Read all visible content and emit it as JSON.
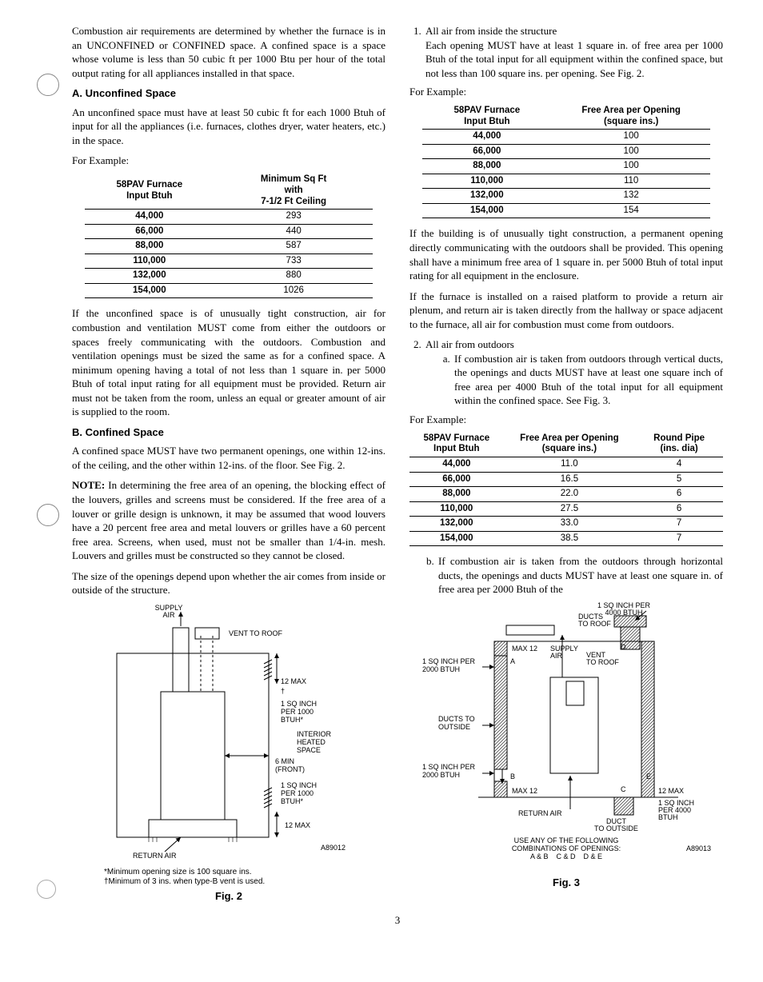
{
  "left": {
    "intro": "Combustion air requirements are determined by whether the furnace is in an UNCONFINED or CONFINED space. A confined space is a space whose volume is less than 50 cubic ft per 1000 Btu per hour of the total output rating for all appliances installed in that space.",
    "sec_a_head": "A. Unconfined Space",
    "sec_a_p1": "An unconfined space must have at least 50 cubic ft for each 1000 Btuh of input for all the appliances (i.e. furnaces, clothes dryer, water heaters, etc.) in the space.",
    "for_example": "For Example:",
    "table1": {
      "h1": "58PAV Furnace\nInput Btuh",
      "h2": "Minimum Sq Ft\nwith\n7-1/2 Ft Ceiling",
      "rows": [
        [
          "44,000",
          "293"
        ],
        [
          "66,000",
          "440"
        ],
        [
          "88,000",
          "587"
        ],
        [
          "110,000",
          "733"
        ],
        [
          "132,000",
          "880"
        ],
        [
          "154,000",
          "1026"
        ]
      ]
    },
    "sec_a_p2": "If the unconfined space is of unusually tight construction, air for combustion and ventilation MUST come from either the outdoors or spaces freely communicating with the outdoors. Combustion and ventilation openings must be sized the same as for a confined space. A minimum opening having a total of not less than 1 square in. per 5000 Btuh of total input rating for all equipment must be provided. Return air must not be taken from the room, unless an equal or greater amount of air is supplied to the room.",
    "sec_b_head": "B. Confined Space",
    "sec_b_p1": "A confined space MUST have two permanent openings, one within 12-ins. of the ceiling, and the other within 12-ins. of the floor. See Fig. 2.",
    "sec_b_p2_note": "NOTE:",
    "sec_b_p2": " In determining the free area of an opening, the blocking effect of the louvers, grilles and screens must be considered. If the free area of a louver or grille design is unknown, it may be assumed that wood louvers have a 20 percent free area and metal louvers or grilles have a 60 percent free area. Screens, when used, must not be smaller than 1/4-in. mesh. Louvers and grilles must be constructed so they cannot be closed.",
    "sec_b_p3": "The size of the openings depend upon whether the air comes from inside or outside of the structure.",
    "fig2": {
      "labels": {
        "supply_air": "SUPPLY\nAIR",
        "vent_roof": "VENT TO ROOF",
        "max12_top": "12 MAX",
        "sq_top": "1 SQ INCH\nPER 1000\nBTUH*",
        "interior": "INTERIOR\nHEATED\nSPACE",
        "front": "6 MIN\n(FRONT)",
        "sq_bot": "1 SQ INCH\nPER 1000\nBTUH*",
        "max12_bot": "12 MAX",
        "return": "RETURN AIR",
        "code": "A89012"
      },
      "footnote1": "*Minimum opening size is 100 square ins.",
      "footnote2": "†Minimum of 3 ins. when type-B vent is used.",
      "caption": "Fig. 2"
    }
  },
  "right": {
    "list1_li1_lead": "All air from inside the structure",
    "list1_li1_body": "Each opening MUST have at least 1 square in. of free area per 1000 Btuh of the total input for all equipment within the confined space, but not less than 100 square ins. per opening. See Fig. 2.",
    "for_example": "For Example:",
    "table2": {
      "h1": "58PAV Furnace\nInput Btuh",
      "h2": "Free Area per Opening\n(square ins.)",
      "rows": [
        [
          "44,000",
          "100"
        ],
        [
          "66,000",
          "100"
        ],
        [
          "88,000",
          "100"
        ],
        [
          "110,000",
          "110"
        ],
        [
          "132,000",
          "132"
        ],
        [
          "154,000",
          "154"
        ]
      ]
    },
    "p_after_t2": "If the building is of unusually tight construction, a permanent opening directly communicating with the outdoors shall be provided. This opening shall have a minimum free area of 1 square in. per 5000 Btuh of total input rating for all equipment in the enclosure.",
    "p_platform": "If the furnace is installed on a raised platform to provide a return air plenum, and return air is taken directly from the hallway or space adjacent to the furnace, all air for combustion must come from outdoors.",
    "list2_li2": "All air from outdoors",
    "list2_a": "If combustion air is taken from outdoors through vertical ducts, the openings and ducts MUST have at least one square inch of free area per 4000 Btuh of the total input for all equipment within the confined space. See Fig. 3.",
    "table3": {
      "h1": "58PAV Furnace\nInput Btuh",
      "h2": "Free Area per Opening\n(square ins.)",
      "h3": "Round Pipe\n(ins. dia)",
      "rows": [
        [
          "44,000",
          "11.0",
          "4"
        ],
        [
          "66,000",
          "16.5",
          "5"
        ],
        [
          "88,000",
          "22.0",
          "6"
        ],
        [
          "110,000",
          "27.5",
          "6"
        ],
        [
          "132,000",
          "33.0",
          "7"
        ],
        [
          "154,000",
          "38.5",
          "7"
        ]
      ]
    },
    "list2_b": "If combustion air is taken from the outdoors through horizontal ducts, the openings and ducts MUST have at least one square in. of free area per 2000 Btuh of the",
    "fig3": {
      "labels": {
        "top_r": "1 SQ INCH PER\n4000 BTUH",
        "ducts_roof": "DUCTS\nTO ROOF",
        "max12_l": "MAX 12",
        "supply": "SUPPLY\nAIR",
        "vent_roof": "VENT\nTO ROOF",
        "sq2000_l": "1 SQ INCH PER\n2000 BTUH",
        "ducts_out": "DUCTS TO\nOUTSIDE",
        "sq2000_bl": "1 SQ INCH PER\n2000 BTUH",
        "max12_bl": "MAX 12",
        "sq4000_br": "1 SQ INCH\nPER 4000\nBTUH",
        "max12_br": "12 MAX",
        "return": "RETURN AIR",
        "duct_out_b": "DUCT\nTO OUTSIDE",
        "use": "USE ANY OF THE FOLLOWING\nCOMBINATIONS OF OPENINGS:\nA & B    C & D    D & E",
        "code": "A89013"
      },
      "caption": "Fig. 3"
    }
  },
  "page_number": "3"
}
